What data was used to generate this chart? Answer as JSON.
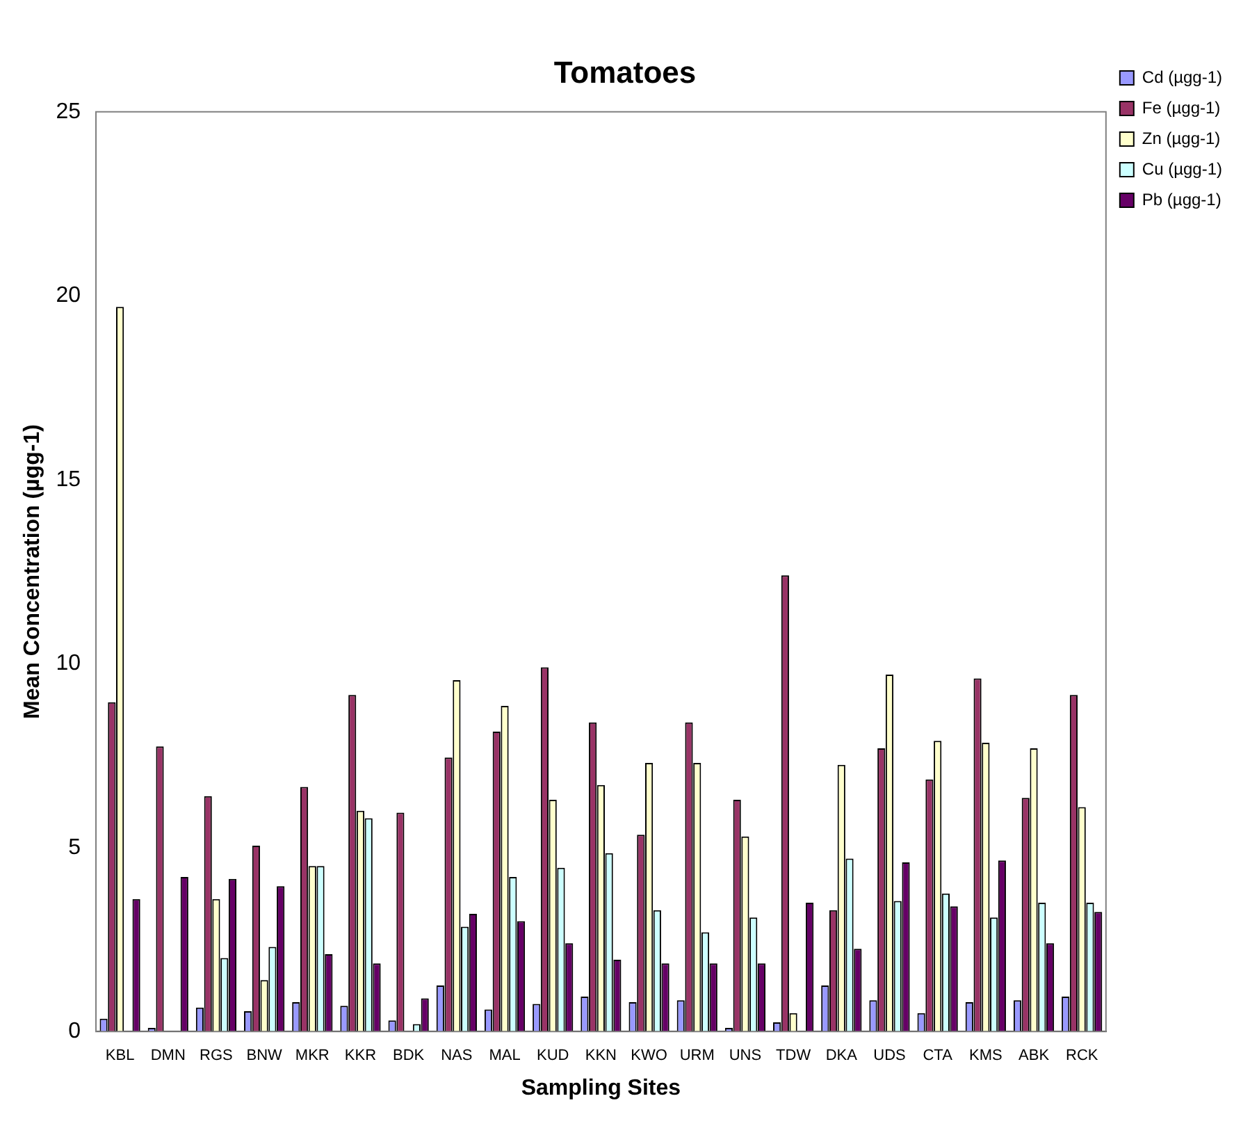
{
  "chart_data": {
    "type": "bar",
    "title": "Tomatoes",
    "xlabel": "Sampling Sites",
    "ylabel": "Mean Concentration (µgg-1)",
    "categories": [
      "KBL",
      "DMN",
      "RGS",
      "BNW",
      "MKR",
      "KKR",
      "BDK",
      "NAS",
      "MAL",
      "KUD",
      "KKN",
      "KWO",
      "URM",
      "UNS",
      "TDW",
      "DKA",
      "UDS",
      "CTA",
      "KMS",
      "ABK",
      "RCK"
    ],
    "series": [
      {
        "name": "Cd (µgg-1)",
        "color": "#9999ff",
        "values": [
          0.35,
          0.1,
          0.65,
          0.55,
          0.8,
          0.7,
          0.3,
          1.25,
          0.6,
          0.75,
          0.95,
          0.8,
          0.85,
          0.1,
          0.25,
          1.25,
          0.85,
          0.5,
          0.8,
          0.85,
          0.95
        ]
      },
      {
        "name": "Fe (µgg-1)",
        "color": "#993366",
        "values": [
          8.95,
          7.75,
          6.4,
          5.05,
          6.65,
          9.15,
          5.95,
          7.45,
          8.15,
          9.9,
          8.4,
          5.35,
          8.4,
          6.3,
          12.4,
          3.3,
          7.7,
          6.85,
          9.6,
          6.35,
          9.15
        ]
      },
      {
        "name": "Zn (µgg-1)",
        "color": "#ffffcc",
        "values": [
          19.7,
          0,
          3.6,
          1.4,
          4.5,
          6.0,
          0,
          9.55,
          8.85,
          6.3,
          6.7,
          7.3,
          7.3,
          5.3,
          0.5,
          7.25,
          9.7,
          7.9,
          7.85,
          7.7,
          6.1
        ]
      },
      {
        "name": "Cu (µgg-1)",
        "color": "#ccffff",
        "values": [
          0,
          0,
          2.0,
          2.3,
          4.5,
          5.8,
          0.2,
          2.85,
          4.2,
          4.45,
          4.85,
          3.3,
          2.7,
          3.1,
          0,
          4.7,
          3.55,
          3.75,
          3.1,
          3.5,
          3.5
        ]
      },
      {
        "name": "Pb (µgg-1)",
        "color": "#660066",
        "values": [
          3.6,
          4.2,
          4.15,
          3.95,
          2.1,
          1.85,
          0.9,
          3.2,
          3.0,
          2.4,
          1.95,
          1.85,
          1.85,
          1.85,
          3.5,
          2.25,
          4.6,
          3.4,
          4.65,
          2.4,
          3.25
        ]
      }
    ],
    "ylim": [
      0,
      25
    ],
    "yticks": [
      0,
      5,
      10,
      15,
      20,
      25
    ],
    "grid": false,
    "legend": "right"
  }
}
